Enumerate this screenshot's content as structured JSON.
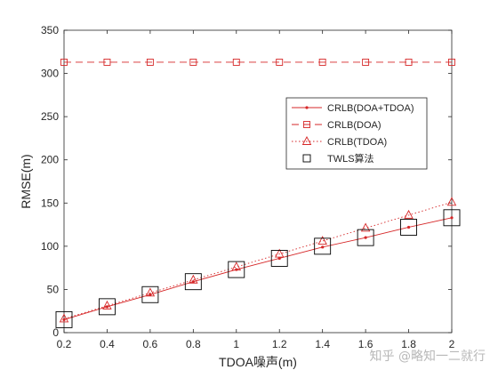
{
  "chart_data": {
    "type": "line",
    "xlabel": "TDOA噪声(m)",
    "ylabel": "RMSE(m)",
    "xlim": [
      0.2,
      2
    ],
    "ylim": [
      0,
      350
    ],
    "xticks": [
      0.2,
      0.4,
      0.6,
      0.8,
      1,
      1.2,
      1.4,
      1.6,
      1.8,
      2
    ],
    "xtick_labels": [
      "0.2",
      "0.4",
      "0.6",
      "0.8",
      "1",
      "1.2",
      "1.4",
      "1.6",
      "1.8",
      "2"
    ],
    "yticks": [
      0,
      50,
      100,
      150,
      200,
      250,
      300,
      350
    ],
    "ytick_labels": [
      "0",
      "50",
      "100",
      "150",
      "200",
      "250",
      "300",
      "350"
    ],
    "grid": false,
    "legend_position": "upper-right",
    "x": [
      0.2,
      0.4,
      0.6,
      0.8,
      1.0,
      1.2,
      1.4,
      1.6,
      1.8,
      2.0
    ],
    "series": [
      {
        "name": "CRLB(DOA+TDOA)",
        "values": [
          15,
          30,
          44,
          59,
          73,
          86,
          99,
          110,
          122,
          133
        ],
        "color": "#d62728",
        "line": "solid",
        "marker": "dot"
      },
      {
        "name": "CRLB(DOA)",
        "values": [
          313,
          313,
          313,
          313,
          313,
          313,
          313,
          313,
          313,
          313
        ],
        "color": "#d62728",
        "line": "dashed",
        "marker": "square"
      },
      {
        "name": "CRLB(TDOA)",
        "values": [
          16,
          31,
          46,
          61,
          76,
          91,
          106,
          121,
          136,
          151
        ],
        "color": "#d62728",
        "line": "dotted",
        "marker": "triangle"
      },
      {
        "name": "TWLS算法",
        "values": [
          15,
          30,
          44,
          59,
          73,
          86,
          100,
          110,
          122,
          133
        ],
        "color": "#000000",
        "line": "none",
        "marker": "big-square"
      }
    ]
  },
  "watermark": "知乎 @略知一二就行"
}
